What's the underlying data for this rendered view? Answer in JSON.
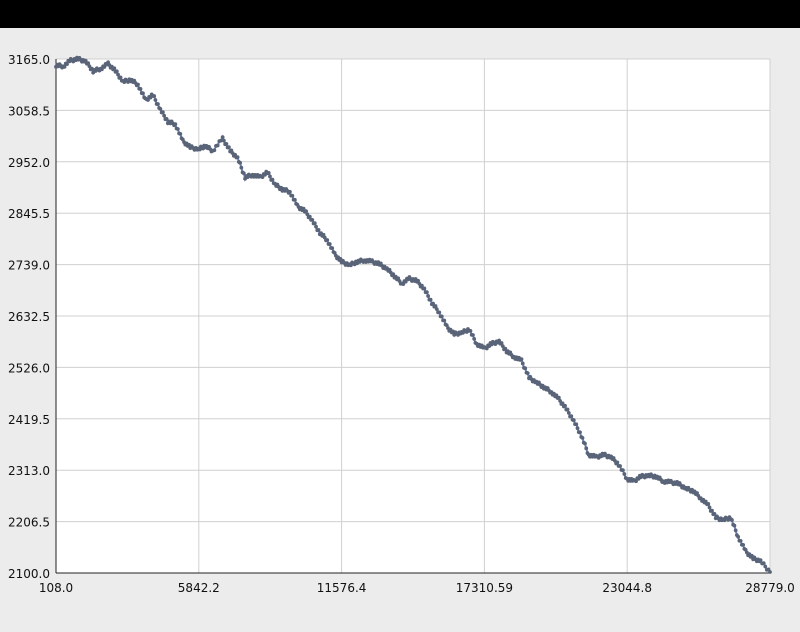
{
  "window": {
    "title_bar_color": "#000000",
    "background": "#ececec"
  },
  "chart_data": {
    "type": "scatter",
    "title": "",
    "xlabel": "",
    "ylabel": "",
    "xlim": [
      108.0,
      28779.0
    ],
    "ylim": [
      2100.0,
      3165.0
    ],
    "x_ticks": [
      "108.0",
      "5842.2",
      "11576.4",
      "17310.59",
      "23044.8",
      "28779.0"
    ],
    "y_ticks": [
      "3165.0",
      "3058.5",
      "2952.0",
      "2845.5",
      "2739.0",
      "2632.5",
      "2526.0",
      "2419.5",
      "2313.0",
      "2206.5",
      "2100.0"
    ],
    "x_tick_values": [
      108.0,
      5842.2,
      11576.4,
      17310.59,
      23044.8,
      28779.0
    ],
    "y_tick_values": [
      3165.0,
      3058.5,
      2952.0,
      2845.5,
      2739.0,
      2632.5,
      2526.0,
      2419.5,
      2313.0,
      2206.5,
      2100.0
    ],
    "grid": true,
    "line_color": "#6b86c4",
    "marker_color": "#5a6478",
    "series": [
      {
        "values_xy": [
          [
            108,
            3152
          ],
          [
            400,
            3150
          ],
          [
            700,
            3162
          ],
          [
            1000,
            3165
          ],
          [
            1300,
            3160
          ],
          [
            1600,
            3140
          ],
          [
            1900,
            3145
          ],
          [
            2200,
            3155
          ],
          [
            2500,
            3140
          ],
          [
            2800,
            3118
          ],
          [
            3100,
            3122
          ],
          [
            3400,
            3112
          ],
          [
            3700,
            3080
          ],
          [
            4000,
            3090
          ],
          [
            4300,
            3060
          ],
          [
            4600,
            3035
          ],
          [
            4900,
            3030
          ],
          [
            5200,
            2995
          ],
          [
            5500,
            2982
          ],
          [
            5842,
            2978
          ],
          [
            6100,
            2985
          ],
          [
            6400,
            2975
          ],
          [
            6800,
            3000
          ],
          [
            7100,
            2975
          ],
          [
            7400,
            2960
          ],
          [
            7700,
            2920
          ],
          [
            8000,
            2925
          ],
          [
            8300,
            2920
          ],
          [
            8600,
            2930
          ],
          [
            8900,
            2905
          ],
          [
            9200,
            2895
          ],
          [
            9500,
            2890
          ],
          [
            9800,
            2860
          ],
          [
            10100,
            2850
          ],
          [
            10400,
            2830
          ],
          [
            10700,
            2805
          ],
          [
            11000,
            2790
          ],
          [
            11300,
            2760
          ],
          [
            11576,
            2745
          ],
          [
            11900,
            2738
          ],
          [
            12200,
            2745
          ],
          [
            12500,
            2748
          ],
          [
            12800,
            2745
          ],
          [
            13100,
            2740
          ],
          [
            13400,
            2730
          ],
          [
            13700,
            2715
          ],
          [
            14000,
            2700
          ],
          [
            14300,
            2710
          ],
          [
            14600,
            2705
          ],
          [
            14900,
            2688
          ],
          [
            15200,
            2660
          ],
          [
            15500,
            2640
          ],
          [
            15800,
            2610
          ],
          [
            16100,
            2595
          ],
          [
            16400,
            2598
          ],
          [
            16700,
            2605
          ],
          [
            17000,
            2575
          ],
          [
            17310,
            2565
          ],
          [
            17600,
            2575
          ],
          [
            17900,
            2580
          ],
          [
            18200,
            2560
          ],
          [
            18500,
            2548
          ],
          [
            18800,
            2540
          ],
          [
            19100,
            2505
          ],
          [
            19400,
            2495
          ],
          [
            19700,
            2485
          ],
          [
            20000,
            2475
          ],
          [
            20300,
            2460
          ],
          [
            20600,
            2440
          ],
          [
            20900,
            2415
          ],
          [
            21200,
            2385
          ],
          [
            21500,
            2345
          ],
          [
            21800,
            2340
          ],
          [
            22100,
            2345
          ],
          [
            22400,
            2340
          ],
          [
            22700,
            2325
          ],
          [
            23044,
            2295
          ],
          [
            23300,
            2290
          ],
          [
            23600,
            2300
          ],
          [
            23900,
            2302
          ],
          [
            24200,
            2300
          ],
          [
            24500,
            2290
          ],
          [
            24800,
            2288
          ],
          [
            25100,
            2285
          ],
          [
            25400,
            2275
          ],
          [
            25700,
            2270
          ],
          [
            26000,
            2255
          ],
          [
            26300,
            2240
          ],
          [
            26600,
            2215
          ],
          [
            26900,
            2210
          ],
          [
            27200,
            2215
          ],
          [
            27500,
            2175
          ],
          [
            27800,
            2145
          ],
          [
            28100,
            2130
          ],
          [
            28400,
            2125
          ],
          [
            28779,
            2102
          ]
        ]
      }
    ]
  }
}
